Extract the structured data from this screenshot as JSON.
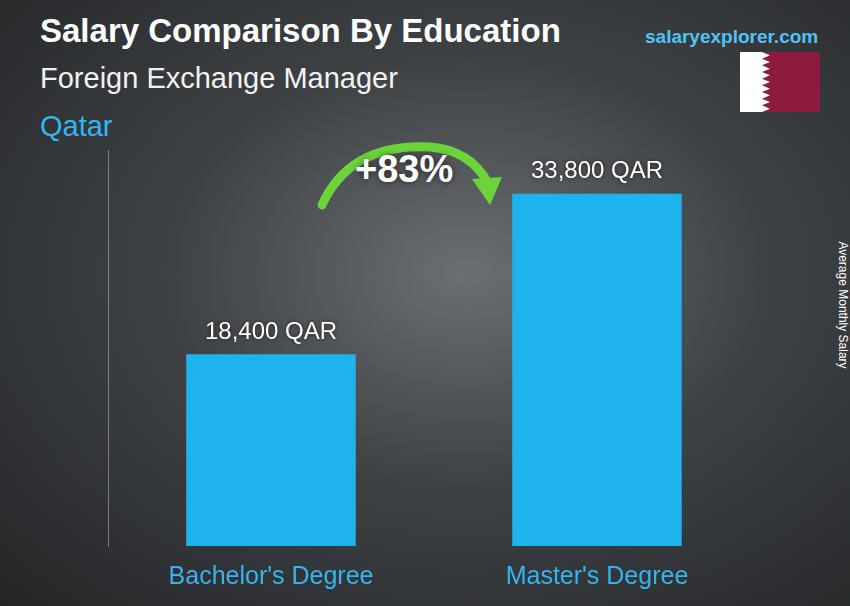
{
  "chart_data": {
    "type": "bar",
    "title": "Salary Comparison By Education",
    "subtitle": "Foreign Exchange Manager",
    "location": "Qatar",
    "source": "salaryexplorer.com",
    "y_label": "Average Monthly Salary",
    "annotation": "+83%",
    "categories": [
      "Bachelor's Degree",
      "Master's Degree"
    ],
    "values": [
      18400,
      33800
    ],
    "value_labels": [
      "18,400 QAR",
      "33,800 QAR"
    ],
    "color": "#1fb3ee",
    "ylim": [
      0,
      38000
    ],
    "grid": false,
    "data_labels": true,
    "tick_labels": "x"
  }
}
